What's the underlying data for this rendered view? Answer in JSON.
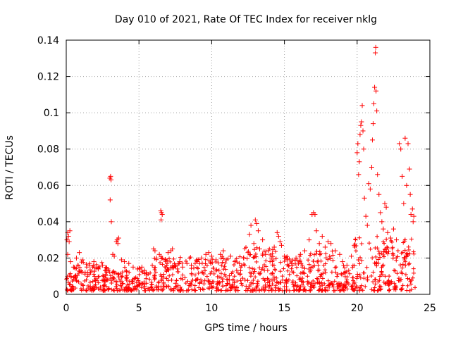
{
  "chart_data": {
    "type": "scatter",
    "title": "Day 010 of 2021, Rate Of TEC Index for receiver nklg",
    "xlabel": "GPS time / hours",
    "ylabel": "ROTI / TECUs",
    "xlim": [
      0,
      25
    ],
    "ylim": [
      0,
      0.14
    ],
    "xticks": [
      0,
      5,
      10,
      15,
      20,
      25
    ],
    "xtick_labels": [
      "0",
      "5",
      "10",
      "15",
      "20",
      "25"
    ],
    "yticks": [
      0,
      0.02,
      0.04,
      0.06,
      0.08,
      0.1,
      0.12,
      0.14
    ],
    "ytick_labels": [
      "0",
      "0.02",
      "0.04",
      "0.06",
      "0.08",
      "0.1",
      "0.12",
      "0.14"
    ],
    "grid": true,
    "marker": "+",
    "marker_color": "#ff0000",
    "series": [
      {
        "name": "ROTI",
        "points": [
          [
            0.05,
            0.03
          ],
          [
            0.1,
            0.034
          ],
          [
            0.15,
            0.032
          ],
          [
            0.2,
            0.029
          ],
          [
            0.25,
            0.035
          ],
          [
            0.1,
            0.022
          ],
          [
            0.3,
            0.018
          ],
          [
            0.5,
            0.015
          ],
          [
            0.7,
            0.02
          ],
          [
            0.9,
            0.023
          ],
          [
            1.1,
            0.019
          ],
          [
            1.3,
            0.012
          ],
          [
            1.6,
            0.016
          ],
          [
            1.9,
            0.018
          ],
          [
            2.2,
            0.014
          ],
          [
            2.5,
            0.016
          ],
          [
            2.8,
            0.013
          ],
          [
            3.0,
            0.064
          ],
          [
            3.05,
            0.065
          ],
          [
            3.08,
            0.063
          ],
          [
            3.02,
            0.052
          ],
          [
            3.1,
            0.04
          ],
          [
            3.2,
            0.022
          ],
          [
            3.3,
            0.021
          ],
          [
            3.45,
            0.029
          ],
          [
            3.5,
            0.03
          ],
          [
            3.55,
            0.028
          ],
          [
            3.6,
            0.031
          ],
          [
            3.8,
            0.019
          ],
          [
            4.0,
            0.018
          ],
          [
            4.3,
            0.017
          ],
          [
            4.6,
            0.015
          ],
          [
            4.9,
            0.014
          ],
          [
            5.2,
            0.015
          ],
          [
            5.5,
            0.012
          ],
          [
            6.0,
            0.025
          ],
          [
            6.1,
            0.024
          ],
          [
            6.2,
            0.02
          ],
          [
            6.4,
            0.022
          ],
          [
            6.5,
            0.046
          ],
          [
            6.55,
            0.045
          ],
          [
            6.6,
            0.044
          ],
          [
            6.52,
            0.041
          ],
          [
            6.8,
            0.019
          ],
          [
            7.0,
            0.023
          ],
          [
            7.2,
            0.024
          ],
          [
            7.3,
            0.025
          ],
          [
            7.5,
            0.016
          ],
          [
            7.8,
            0.018
          ],
          [
            8.0,
            0.015
          ],
          [
            8.3,
            0.017
          ],
          [
            8.6,
            0.016
          ],
          [
            9.0,
            0.019
          ],
          [
            9.3,
            0.02
          ],
          [
            9.6,
            0.022
          ],
          [
            9.8,
            0.023
          ],
          [
            10.0,
            0.021
          ],
          [
            10.3,
            0.019
          ],
          [
            10.6,
            0.022
          ],
          [
            10.8,
            0.024
          ],
          [
            11.0,
            0.019
          ],
          [
            11.3,
            0.021
          ],
          [
            11.6,
            0.018
          ],
          [
            11.9,
            0.017
          ],
          [
            12.2,
            0.02
          ],
          [
            12.5,
            0.023
          ],
          [
            12.6,
            0.033
          ],
          [
            12.7,
            0.038
          ],
          [
            12.9,
            0.028
          ],
          [
            13.0,
            0.041
          ],
          [
            13.1,
            0.039
          ],
          [
            13.2,
            0.035
          ],
          [
            13.3,
            0.025
          ],
          [
            13.5,
            0.03
          ],
          [
            13.7,
            0.022
          ],
          [
            13.9,
            0.024
          ],
          [
            14.1,
            0.02
          ],
          [
            14.3,
            0.026
          ],
          [
            14.5,
            0.034
          ],
          [
            14.6,
            0.032
          ],
          [
            14.7,
            0.029
          ],
          [
            14.8,
            0.027
          ],
          [
            15.0,
            0.021
          ],
          [
            15.2,
            0.019
          ],
          [
            15.5,
            0.017
          ],
          [
            15.8,
            0.02
          ],
          [
            16.1,
            0.022
          ],
          [
            16.4,
            0.024
          ],
          [
            16.7,
            0.03
          ],
          [
            16.9,
            0.044
          ],
          [
            17.0,
            0.045
          ],
          [
            17.1,
            0.044
          ],
          [
            17.2,
            0.035
          ],
          [
            17.4,
            0.028
          ],
          [
            17.6,
            0.032
          ],
          [
            17.8,
            0.026
          ],
          [
            18.0,
            0.029
          ],
          [
            18.2,
            0.028
          ],
          [
            18.5,
            0.024
          ],
          [
            18.8,
            0.022
          ],
          [
            19.0,
            0.018
          ],
          [
            19.3,
            0.016
          ],
          [
            19.6,
            0.021
          ],
          [
            19.8,
            0.027
          ],
          [
            20.0,
            0.078
          ],
          [
            20.05,
            0.083
          ],
          [
            20.1,
            0.066
          ],
          [
            20.15,
            0.073
          ],
          [
            20.2,
            0.088
          ],
          [
            20.25,
            0.093
          ],
          [
            20.3,
            0.095
          ],
          [
            20.35,
            0.104
          ],
          [
            20.4,
            0.09
          ],
          [
            20.45,
            0.08
          ],
          [
            20.5,
            0.053
          ],
          [
            20.6,
            0.043
          ],
          [
            20.7,
            0.038
          ],
          [
            20.8,
            0.061
          ],
          [
            20.9,
            0.058
          ],
          [
            21.0,
            0.07
          ],
          [
            21.05,
            0.085
          ],
          [
            21.1,
            0.094
          ],
          [
            21.15,
            0.105
          ],
          [
            21.2,
            0.114
          ],
          [
            21.25,
            0.133
          ],
          [
            21.28,
            0.136
          ],
          [
            21.3,
            0.112
          ],
          [
            21.35,
            0.101
          ],
          [
            21.4,
            0.066
          ],
          [
            21.5,
            0.055
          ],
          [
            21.6,
            0.045
          ],
          [
            21.7,
            0.04
          ],
          [
            21.8,
            0.036
          ],
          [
            21.9,
            0.05
          ],
          [
            22.0,
            0.048
          ],
          [
            22.1,
            0.034
          ],
          [
            22.3,
            0.031
          ],
          [
            22.5,
            0.036
          ],
          [
            22.7,
            0.03
          ],
          [
            22.9,
            0.083
          ],
          [
            23.0,
            0.08
          ],
          [
            23.1,
            0.065
          ],
          [
            23.2,
            0.05
          ],
          [
            23.3,
            0.086
          ],
          [
            23.4,
            0.06
          ],
          [
            23.5,
            0.083
          ],
          [
            23.6,
            0.069
          ],
          [
            23.65,
            0.055
          ],
          [
            23.7,
            0.044
          ],
          [
            23.8,
            0.047
          ],
          [
            23.85,
            0.04
          ],
          [
            23.9,
            0.043
          ]
        ]
      }
    ]
  }
}
